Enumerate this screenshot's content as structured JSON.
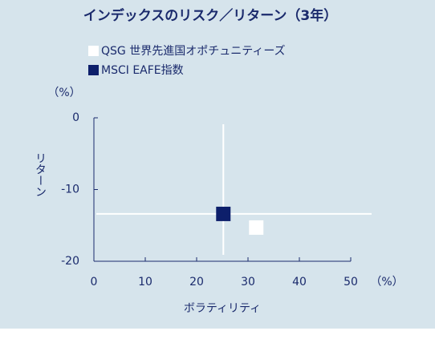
{
  "chart_data": {
    "type": "scatter",
    "title": "インデックスのリスク／リターン（3年）",
    "x_label": "ボラティリティ",
    "y_label": "リターン",
    "x_unit": "（%）",
    "y_unit": "（%）",
    "series": [
      {
        "name": "QSG 世界先進国オポチュニティーズ",
        "color": "#ffffff",
        "x": [
          31.6
        ],
        "values": [
          -15.3
        ]
      },
      {
        "name": "MSCI EAFE指数",
        "color": "#0d1f6b",
        "x": [
          25.2
        ],
        "values": [
          -13.4
        ]
      }
    ],
    "xlim": [
      0,
      50
    ],
    "xticks": [
      0,
      10,
      20,
      30,
      40,
      50
    ],
    "ylim": [
      -20,
      0
    ],
    "yticks": [
      0,
      -10,
      -20
    ]
  }
}
